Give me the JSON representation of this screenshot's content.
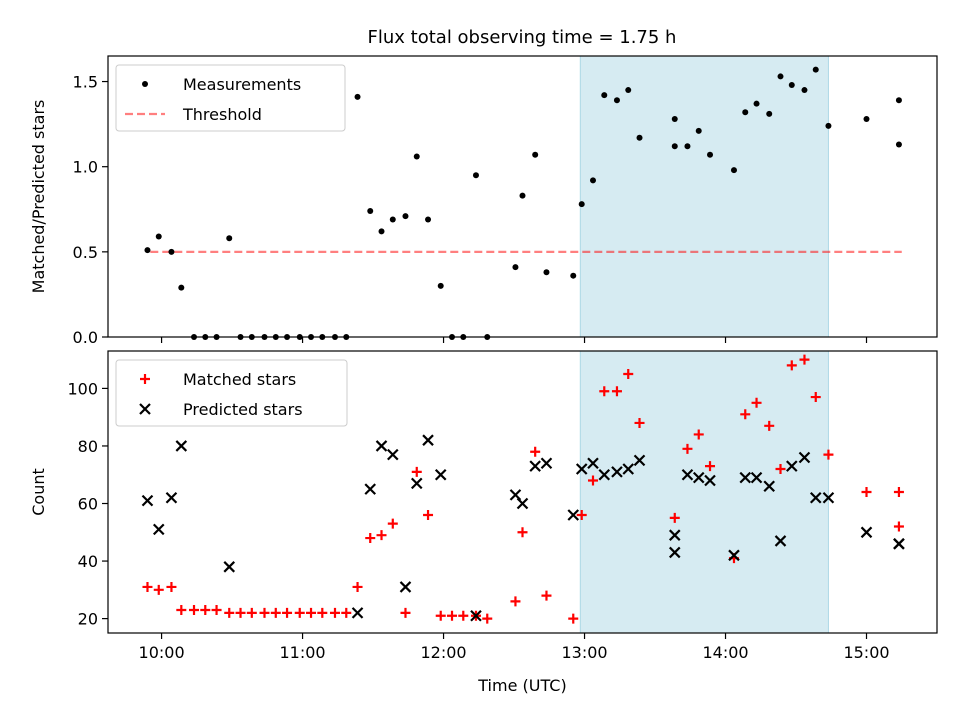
{
  "figure": {
    "title": "Flux total observing time = 1.75 h"
  },
  "colors": {
    "shade": "#add8e6",
    "threshold": "#ff0000",
    "measurement": "#000000",
    "matched": "#ff0000",
    "predicted": "#000000"
  },
  "chart_data": [
    {
      "type": "scatter",
      "title": "Flux total observing time = 1.75 h",
      "xlabel": "",
      "ylabel": "Matched/Predicted stars",
      "xlim_hours": [
        9.62,
        15.5
      ],
      "ylim": [
        0,
        1.65
      ],
      "yticks": [
        0.0,
        0.5,
        1.0,
        1.5
      ],
      "ytick_labels": [
        "0.0",
        "0.5",
        "1.0",
        "1.5"
      ],
      "xticks_hours": [
        10,
        11,
        12,
        13,
        14,
        15
      ],
      "shaded_interval_hours": [
        12.97,
        14.73
      ],
      "legend": {
        "position": "top-left",
        "entries": [
          "Measurements",
          "Threshold"
        ]
      },
      "threshold": {
        "name": "Threshold",
        "value": 0.5,
        "x_range_hours": [
          9.92,
          15.25
        ]
      },
      "series": [
        {
          "name": "Measurements",
          "x_hours": [
            9.9,
            9.98,
            10.07,
            10.14,
            10.23,
            10.31,
            10.39,
            10.48,
            10.56,
            10.64,
            10.73,
            10.81,
            10.89,
            10.98,
            11.06,
            11.14,
            11.23,
            11.31,
            11.39,
            11.48,
            11.56,
            11.64,
            11.73,
            11.81,
            11.89,
            11.98,
            12.06,
            12.14,
            12.23,
            12.31,
            12.51,
            12.56,
            12.65,
            12.73,
            12.92,
            12.98,
            13.06,
            13.14,
            13.23,
            13.31,
            13.39,
            13.64,
            13.64,
            13.73,
            13.81,
            13.89,
            14.06,
            14.14,
            14.22,
            14.31,
            14.39,
            14.47,
            14.56,
            14.64,
            14.73,
            15.0,
            15.23,
            15.23
          ],
          "y": [
            0.51,
            0.59,
            0.5,
            0.29,
            0.0,
            0.0,
            0.0,
            0.58,
            0.0,
            0.0,
            0.0,
            0.0,
            0.0,
            0.0,
            0.0,
            0.0,
            0.0,
            0.0,
            1.41,
            0.74,
            0.62,
            0.69,
            0.71,
            1.06,
            0.69,
            0.3,
            0.0,
            0.0,
            0.95,
            0.0,
            0.41,
            0.83,
            1.07,
            0.38,
            0.36,
            0.78,
            0.92,
            1.42,
            1.39,
            1.45,
            1.17,
            1.28,
            1.12,
            1.12,
            1.21,
            1.07,
            0.98,
            1.32,
            1.37,
            1.31,
            1.53,
            1.48,
            1.45,
            1.57,
            1.24,
            1.28,
            1.13,
            1.39
          ]
        }
      ]
    },
    {
      "type": "scatter",
      "title": "",
      "xlabel": "Time (UTC)",
      "ylabel": "Count",
      "xlim_hours": [
        9.62,
        15.5
      ],
      "ylim": [
        15,
        113
      ],
      "yticks": [
        20,
        40,
        60,
        80,
        100
      ],
      "ytick_labels": [
        "20",
        "40",
        "60",
        "80",
        "100"
      ],
      "xticks_hours": [
        10,
        11,
        12,
        13,
        14,
        15
      ],
      "xtick_labels": [
        "10:00",
        "11:00",
        "12:00",
        "13:00",
        "14:00",
        "15:00"
      ],
      "shaded_interval_hours": [
        12.97,
        14.73
      ],
      "legend": {
        "position": "top-left",
        "entries": [
          "Matched stars",
          "Predicted stars"
        ]
      },
      "series": [
        {
          "name": "Matched stars",
          "marker": "plus",
          "x_hours": [
            9.9,
            9.98,
            10.07,
            10.14,
            10.23,
            10.31,
            10.39,
            10.48,
            10.56,
            10.64,
            10.73,
            10.81,
            10.89,
            10.98,
            11.06,
            11.14,
            11.23,
            11.31,
            11.39,
            11.48,
            11.56,
            11.64,
            11.73,
            11.81,
            11.89,
            11.98,
            12.06,
            12.14,
            12.23,
            12.31,
            12.51,
            12.56,
            12.65,
            12.73,
            12.92,
            12.98,
            13.06,
            13.14,
            13.23,
            13.31,
            13.39,
            13.64,
            13.73,
            13.81,
            13.89,
            14.06,
            14.14,
            14.22,
            14.31,
            14.39,
            14.47,
            14.56,
            14.64,
            14.73,
            15.0,
            15.23,
            15.23
          ],
          "y": [
            31,
            30,
            31,
            23,
            23,
            23,
            23,
            22,
            22,
            22,
            22,
            22,
            22,
            22,
            22,
            22,
            22,
            22,
            31,
            48,
            49,
            53,
            22,
            71,
            56,
            21,
            21,
            21,
            21,
            20,
            26,
            50,
            78,
            28,
            20,
            56,
            68,
            99,
            99,
            105,
            88,
            55,
            79,
            84,
            73,
            41,
            91,
            95,
            87,
            72,
            108,
            110,
            97,
            77,
            64,
            52,
            64
          ]
        },
        {
          "name": "Predicted stars",
          "marker": "x",
          "x_hours": [
            9.9,
            9.98,
            10.07,
            10.14,
            10.48,
            11.39,
            11.48,
            11.56,
            11.64,
            11.73,
            11.81,
            11.89,
            11.98,
            12.23,
            12.51,
            12.56,
            12.65,
            12.73,
            12.92,
            12.98,
            13.06,
            13.14,
            13.23,
            13.31,
            13.39,
            13.64,
            13.64,
            13.73,
            13.81,
            13.89,
            14.06,
            14.14,
            14.22,
            14.31,
            14.39,
            14.47,
            14.56,
            14.64,
            14.73,
            15.0,
            15.23,
            15.23
          ],
          "y": [
            61,
            51,
            62,
            80,
            38,
            22,
            65,
            80,
            77,
            31,
            67,
            82,
            70,
            21,
            63,
            60,
            73,
            74,
            56,
            72,
            74,
            70,
            71,
            72,
            75,
            49,
            43,
            70,
            69,
            68,
            42,
            69,
            69,
            66,
            47,
            73,
            76,
            62,
            62,
            50,
            46,
            46
          ]
        }
      ]
    }
  ]
}
